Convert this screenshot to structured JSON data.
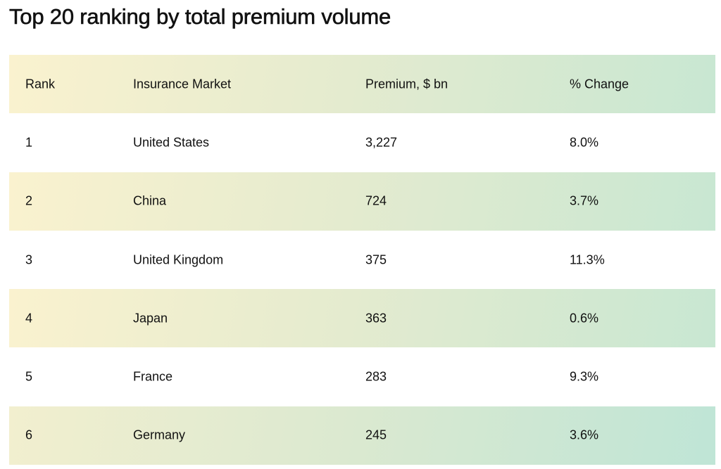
{
  "title": "Top 20 ranking by total premium volume",
  "table": {
    "headers": {
      "rank": "Rank",
      "market": "Insurance Market",
      "premium": "Premium, $ bn",
      "change": "% Change"
    },
    "rows": [
      {
        "rank": "1",
        "market": "United States",
        "premium": "3,227",
        "change": "8.0%"
      },
      {
        "rank": "2",
        "market": "China",
        "premium": "724",
        "change": "3.7%"
      },
      {
        "rank": "3",
        "market": "United Kingdom",
        "premium": "375",
        "change": "11.3%"
      },
      {
        "rank": "4",
        "market": "Japan",
        "premium": "363",
        "change": "0.6%"
      },
      {
        "rank": "5",
        "market": "France",
        "premium": "283",
        "change": "9.3%"
      },
      {
        "rank": "6",
        "market": "Germany",
        "premium": "245",
        "change": "3.6%"
      }
    ]
  }
}
